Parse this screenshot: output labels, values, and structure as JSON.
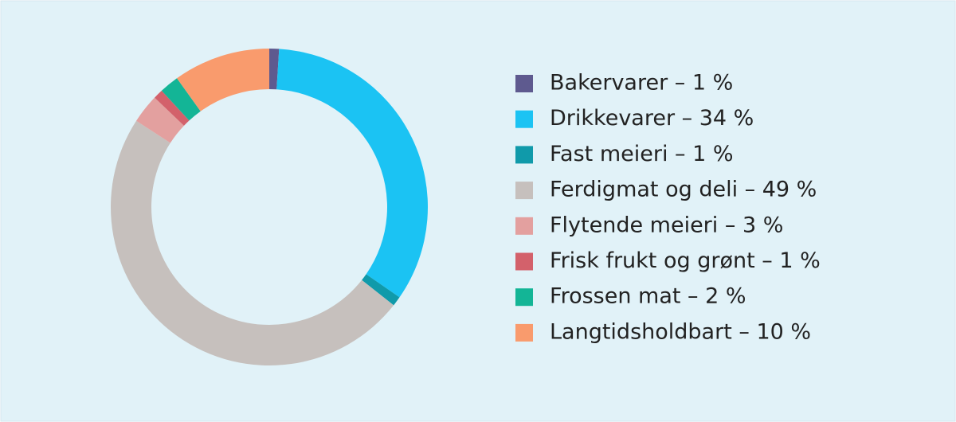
{
  "chart_data": {
    "type": "donut",
    "categories": [
      "Bakervarer – 1 %",
      "Drikkevarer – 34 %",
      "Fast meieri – 1 %",
      "Ferdigmat og deli – 49 %",
      "Flytende meieri – 3 %",
      "Frisk frukt og grønt – 1 %",
      "Frossen mat – 2 %",
      "Langtidsholdbart – 10 %"
    ],
    "values": [
      1,
      34,
      1,
      49,
      3,
      1,
      2,
      10
    ],
    "colors": [
      "#5e5a8f",
      "#1bc3f3",
      "#109aaa",
      "#c6c0bd",
      "#e3a09f",
      "#d3616b",
      "#13b596",
      "#f99b6d"
    ],
    "legend": "right"
  }
}
